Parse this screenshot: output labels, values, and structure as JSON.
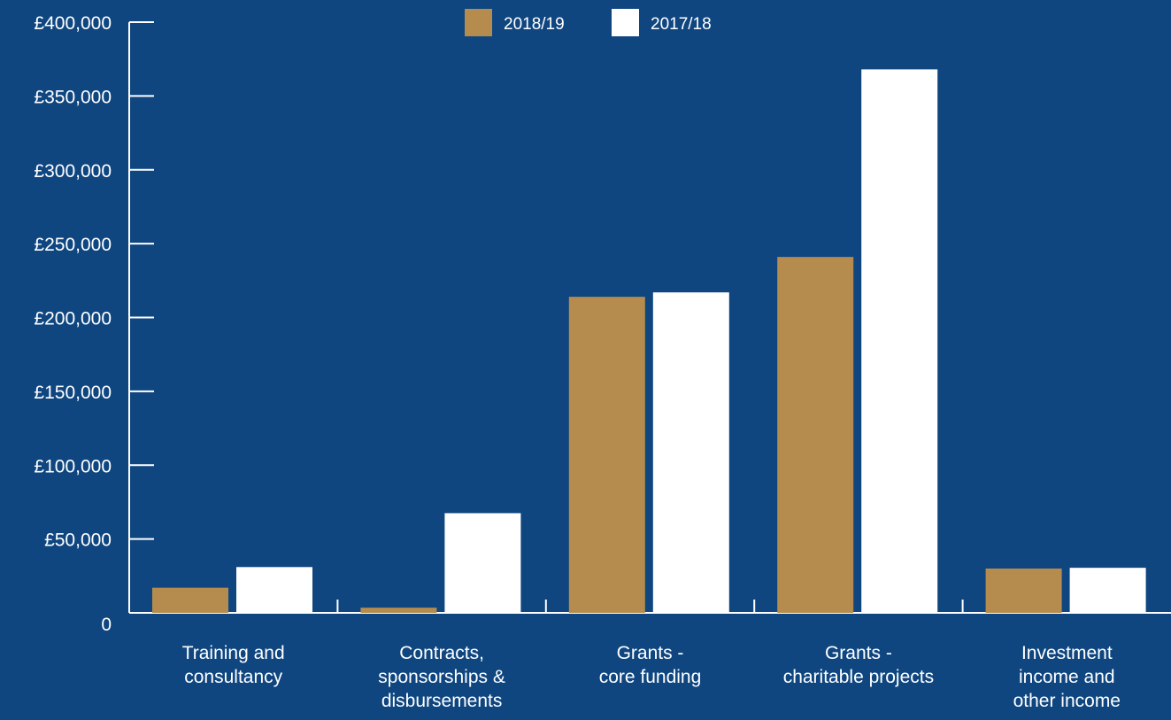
{
  "chart_data": {
    "type": "bar",
    "categories": [
      [
        "Training and",
        "consultancy"
      ],
      [
        "Contracts,",
        "sponsorships &",
        "disbursements"
      ],
      [
        "Grants -",
        "core funding"
      ],
      [
        "Grants -",
        "charitable projects"
      ],
      [
        "Investment",
        "income and",
        "other income"
      ]
    ],
    "series": [
      {
        "name": "2018/19",
        "color": "#b58c4d",
        "values": [
          17000,
          3500,
          214000,
          241000,
          30000
        ]
      },
      {
        "name": "2017/18",
        "color": "#ffffff",
        "values": [
          31000,
          67500,
          217000,
          368000,
          30500
        ]
      }
    ],
    "ylim": [
      0,
      400000
    ],
    "y_ticks": [
      {
        "value": 0,
        "label": "0"
      },
      {
        "value": 50000,
        "label": "£50,000"
      },
      {
        "value": 100000,
        "label": "£100,000"
      },
      {
        "value": 150000,
        "label": "£150,000"
      },
      {
        "value": 200000,
        "label": "£200,000"
      },
      {
        "value": 250000,
        "label": "£250,000"
      },
      {
        "value": 300000,
        "label": "£300,000"
      },
      {
        "value": 350000,
        "label": "£350,000"
      },
      {
        "value": 400000,
        "label": "£400,000"
      }
    ],
    "legend_position": "top-center",
    "grid": false,
    "background": "#0f4680",
    "axis_color": "#ffffff"
  }
}
